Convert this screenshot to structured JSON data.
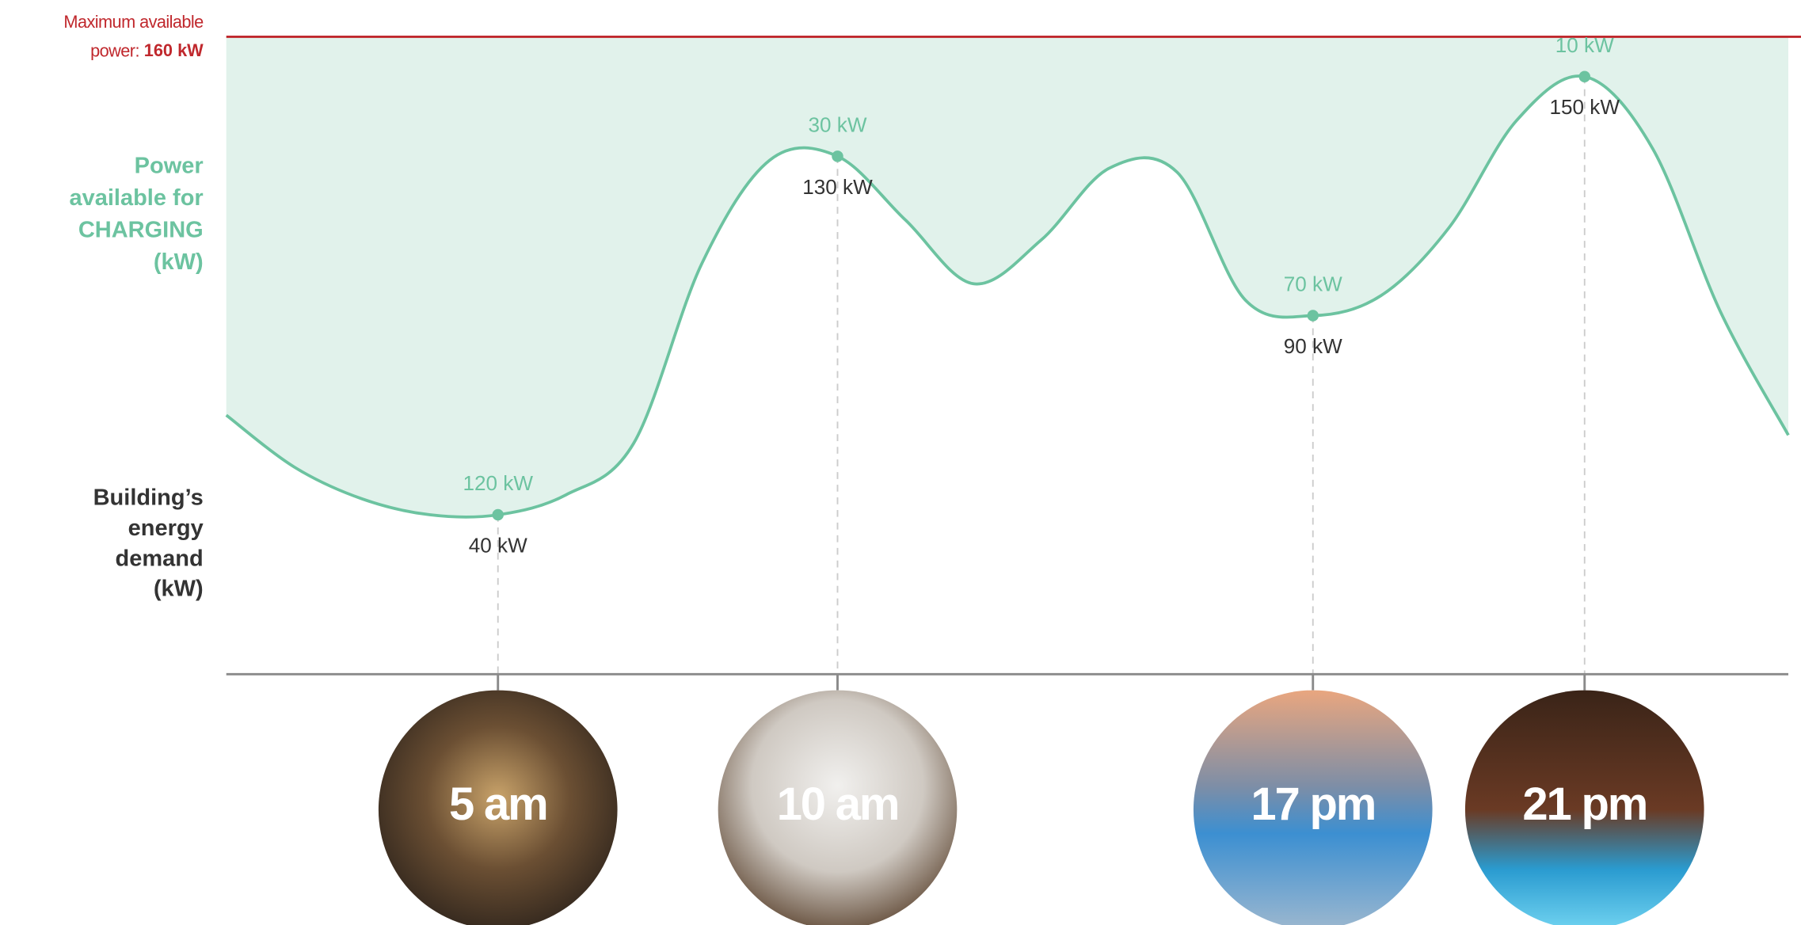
{
  "chart_data": {
    "type": "line",
    "max_label": "Maximum available power:",
    "max_value": 160,
    "max_value_label": "160 kW",
    "area_label": "Power available for CHARGING (kW)",
    "line_label": "Building’s energy demand (kW)",
    "x": [
      1,
      2,
      3,
      4,
      5,
      6,
      7,
      8,
      9,
      10,
      11,
      12,
      13,
      14,
      15,
      16,
      17,
      18,
      19,
      20,
      21,
      22,
      23,
      24
    ],
    "values": [
      65,
      52,
      44,
      40,
      40,
      45,
      58,
      103,
      129,
      130,
      114,
      98,
      109,
      127,
      126,
      94,
      90,
      95,
      112,
      139,
      150,
      132,
      91,
      60
    ],
    "color": "#6cc3a0",
    "fill_color": "#e1f2eb",
    "max_color": "#c0282d",
    "xlim": [
      1,
      24
    ],
    "ylim": [
      0,
      160
    ],
    "xticks": [
      {
        "value": 5,
        "label": "5 am"
      },
      {
        "value": 10,
        "label": "10 am"
      },
      {
        "value": 17,
        "label": "17 pm"
      },
      {
        "value": 21,
        "label": "21 pm"
      }
    ],
    "annotations": [
      {
        "x": 5,
        "demand": 40,
        "demand_label": "40 kW",
        "available": 120,
        "available_label": "120 kW"
      },
      {
        "x": 10,
        "demand": 130,
        "demand_label": "130 kW",
        "available": 30,
        "available_label": "30 kW"
      },
      {
        "x": 17,
        "demand": 90,
        "demand_label": "90 kW",
        "available": 70,
        "available_label": "70 kW"
      },
      {
        "x": 21,
        "demand": 150,
        "demand_label": "150 kW",
        "available": 10,
        "available_label": "10 kW"
      }
    ]
  }
}
